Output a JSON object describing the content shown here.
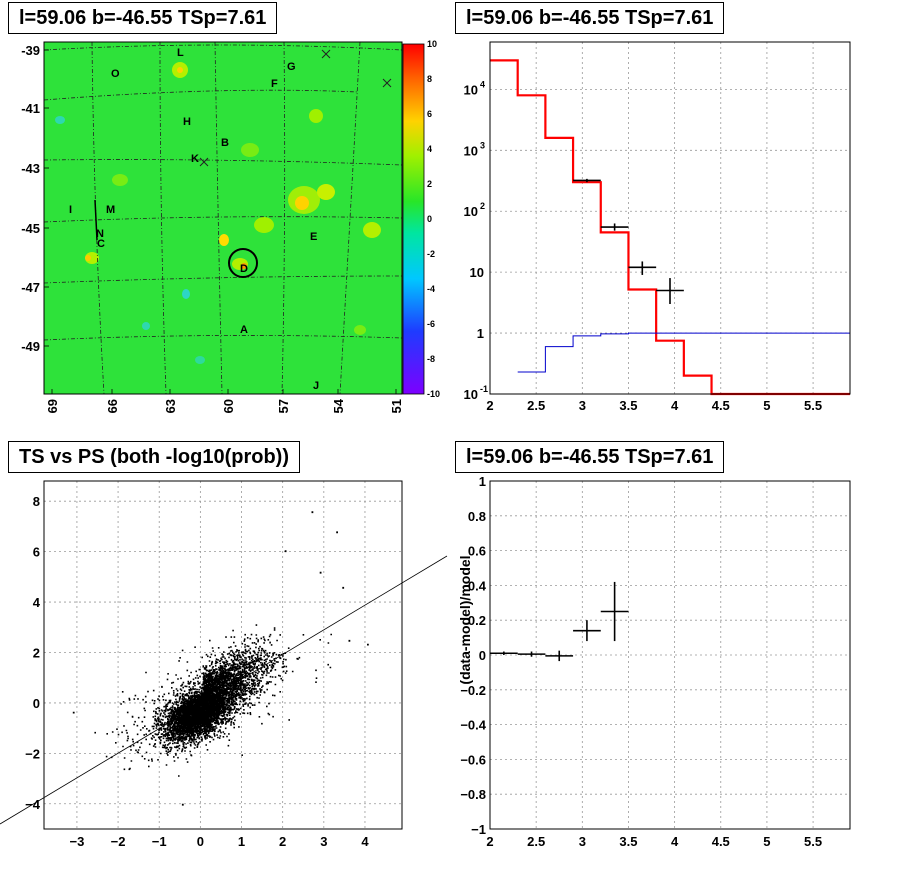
{
  "panels": {
    "map": {
      "title": "l=59.06 b=-46.55 TSp=7.61"
    },
    "spectrum": {
      "title": "l=59.06 b=-46.55 TSp=7.61"
    },
    "scatter": {
      "title": "TS vs PS (both -log10(prob))"
    },
    "residual": {
      "title": "l=59.06 b=-46.55 TSp=7.61"
    }
  },
  "colors": {
    "model_red": "#ff0000",
    "bg_blue": "#0000cc",
    "data_black": "#000000",
    "map_green": "#28e628"
  },
  "chart_data": [
    {
      "type": "heatmap",
      "title": "l=59.06 b=-46.55 TSp=7.61",
      "x_ticks": [
        "69",
        "66",
        "63",
        "60",
        "57",
        "54",
        "51"
      ],
      "y_ticks": [
        "-39",
        "-41",
        "-43",
        "-45",
        "-47",
        "-49"
      ],
      "colorbar": {
        "min": -10,
        "max": 10,
        "ticks": [
          "10",
          "8",
          "6",
          "4",
          "2",
          "0",
          "-2",
          "-4",
          "-6",
          "-8",
          "-10"
        ]
      },
      "source_labels": [
        "L",
        "O",
        "G",
        "F",
        "H",
        "B",
        "K",
        "I",
        "M",
        "N",
        "C",
        "E",
        "D",
        "A",
        "J"
      ],
      "grid": true
    },
    {
      "type": "line",
      "title": "l=59.06 b=-46.55 TSp=7.61",
      "y_log": true,
      "xlim": [
        2,
        5.9
      ],
      "ylim": [
        0.1,
        60000
      ],
      "x_ticks": [
        "2",
        "2.5",
        "3",
        "3.5",
        "4",
        "4.5",
        "5",
        "5.5"
      ],
      "y_ticks": [
        "10^-1",
        "1",
        "10",
        "10^2",
        "10^3",
        "10^4"
      ],
      "series": [
        {
          "style": "step",
          "edges": [
            2.0,
            2.3,
            2.6,
            2.9,
            3.2,
            3.5,
            3.8,
            4.1,
            4.4,
            5.9
          ],
          "values": [
            30000,
            8000,
            1600,
            300,
            45,
            5.2,
            0.75,
            0.2,
            0.1
          ]
        },
        {
          "style": "step",
          "edges": [
            2.3,
            2.6,
            2.9,
            3.2,
            3.5,
            5.9
          ],
          "values": [
            0.23,
            0.6,
            0.9,
            0.97,
            1.0
          ]
        },
        {
          "style": "errorbar",
          "points": [
            {
              "x": 3.05,
              "y": 320,
              "xerr": 0.15,
              "ylo": 300,
              "yhi": 340
            },
            {
              "x": 3.35,
              "y": 55,
              "xerr": 0.15,
              "ylo": 48,
              "yhi": 63
            },
            {
              "x": 3.65,
              "y": 12,
              "xerr": 0.15,
              "ylo": 9,
              "yhi": 15
            },
            {
              "x": 3.95,
              "y": 5,
              "xerr": 0.15,
              "ylo": 3,
              "yhi": 8
            }
          ]
        }
      ],
      "grid": true
    },
    {
      "type": "scatter",
      "title": "TS vs PS (both -log10(prob))",
      "xlim": [
        -3.8,
        4.9
      ],
      "ylim": [
        -5.0,
        8.8
      ],
      "x_ticks": [
        "-3",
        "-2",
        "-1",
        "0",
        "1",
        "2",
        "3",
        "4"
      ],
      "y_ticks": [
        "-4",
        "-2",
        "0",
        "2",
        "4",
        "6",
        "8"
      ],
      "reference_line": {
        "slope": 1,
        "intercept": 0
      },
      "points_approx_count": 6000,
      "grid": true
    },
    {
      "type": "scatter",
      "title": "l=59.06 b=-46.55 TSp=7.61",
      "ylabel": "(data-model)/model",
      "xlim": [
        2,
        5.9
      ],
      "ylim": [
        -1,
        1
      ],
      "x_ticks": [
        "2",
        "2.5",
        "3",
        "3.5",
        "4",
        "4.5",
        "5",
        "5.5"
      ],
      "y_ticks": [
        "1",
        "0.8",
        "0.6",
        "0.4",
        "0.2",
        "0",
        "-0.2",
        "-0.4",
        "-0.6",
        "-0.8",
        "-1"
      ],
      "points": [
        {
          "x": 2.15,
          "y": 0.01,
          "xerr": 0.15,
          "yerr": 0.01
        },
        {
          "x": 2.45,
          "y": 0.005,
          "xerr": 0.15,
          "yerr": 0.015
        },
        {
          "x": 2.75,
          "y": -0.005,
          "xerr": 0.15,
          "yerr": 0.03
        },
        {
          "x": 3.05,
          "y": 0.14,
          "xerr": 0.15,
          "yerr": 0.06
        },
        {
          "x": 3.35,
          "y": 0.25,
          "xerr": 0.15,
          "yerr": 0.17
        }
      ],
      "grid": true
    }
  ]
}
